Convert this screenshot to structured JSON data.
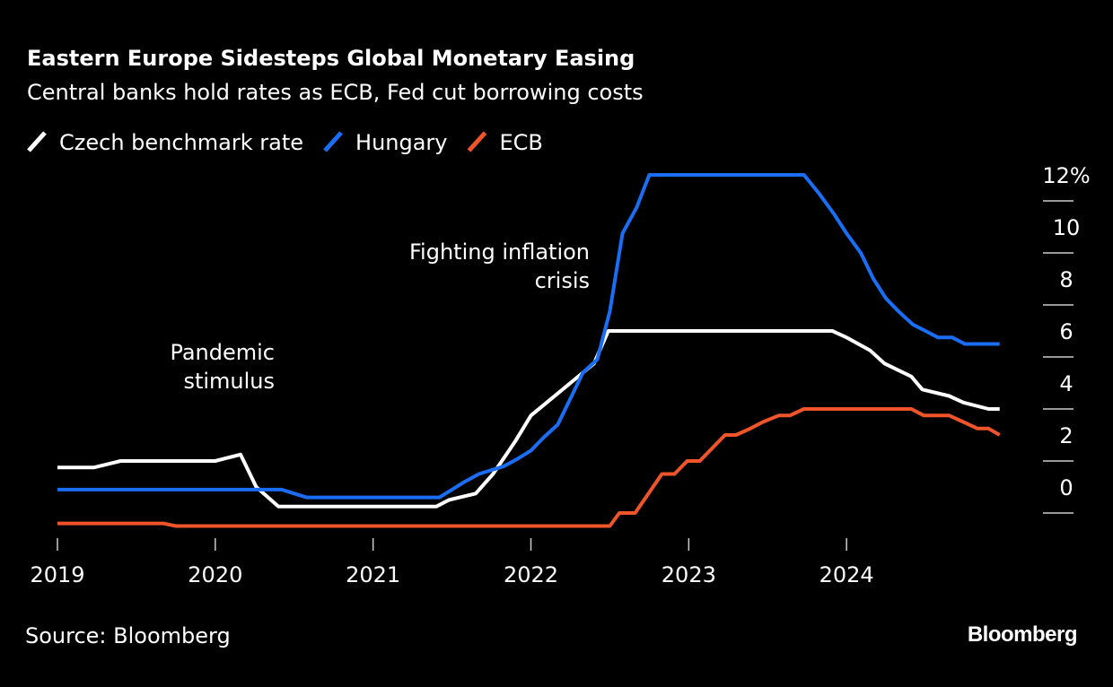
{
  "chart_data": {
    "type": "line",
    "title": "Eastern Europe Sidesteps Global Monetary Easing",
    "subtitle": "Central banks hold rates as ECB, Fed cut borrowing costs",
    "source": "Source: Bloomberg",
    "logo": "Bloomberg",
    "annotations": [
      {
        "lines": [
          "Pandemic",
          "stimulus"
        ]
      },
      {
        "lines": [
          "Fighting inflation",
          "crisis"
        ]
      }
    ],
    "xlim": [
      2019,
      2025
    ],
    "xticks": [
      2019,
      2020,
      2021,
      2022,
      2023,
      2024
    ],
    "ylim": [
      -1,
      13
    ],
    "yticks": [
      0,
      2,
      4,
      6,
      8,
      10,
      {
        "value": 12,
        "label": "12%"
      }
    ],
    "series": [
      {
        "name": "Czech benchmark rate",
        "color": "#ffffff",
        "x": [
          2019.0,
          2019.23,
          2019.4,
          2020.0,
          2020.16,
          2020.26,
          2020.4,
          2021.4,
          2021.48,
          2021.65,
          2021.76,
          2021.9,
          2022.0,
          2022.1,
          2022.2,
          2022.4,
          2022.49,
          2023.91,
          2024.0,
          2024.15,
          2024.24,
          2024.41,
          2024.48,
          2024.65,
          2024.74,
          2024.9,
          2024.97
        ],
        "values": [
          1.75,
          1.75,
          2.0,
          2.0,
          2.25,
          1.0,
          0.25,
          0.25,
          0.5,
          0.75,
          1.5,
          2.75,
          3.75,
          4.25,
          4.75,
          5.75,
          7.0,
          7.0,
          6.75,
          6.25,
          5.75,
          5.25,
          4.75,
          4.5,
          4.25,
          4.0,
          4.0
        ]
      },
      {
        "name": "Hungary",
        "color": "#1a6ef5",
        "x": [
          2019.0,
          2020.42,
          2020.5,
          2020.58,
          2021.42,
          2021.5,
          2021.58,
          2021.67,
          2021.75,
          2021.83,
          2021.92,
          2022.0,
          2022.08,
          2022.17,
          2022.25,
          2022.33,
          2022.42,
          2022.5,
          2022.58,
          2022.67,
          2022.75,
          2023.73,
          2023.83,
          2023.92,
          2024.0,
          2024.09,
          2024.17,
          2024.25,
          2024.33,
          2024.42,
          2024.5,
          2024.58,
          2024.67,
          2024.75,
          2024.97
        ],
        "values": [
          0.9,
          0.9,
          0.75,
          0.6,
          0.6,
          0.9,
          1.2,
          1.5,
          1.65,
          1.8,
          2.1,
          2.4,
          2.9,
          3.4,
          4.4,
          5.4,
          5.9,
          7.75,
          10.75,
          11.75,
          13.0,
          13.0,
          12.25,
          11.5,
          10.75,
          10.0,
          9.0,
          8.25,
          7.75,
          7.25,
          7.0,
          6.75,
          6.75,
          6.5,
          6.5
        ]
      },
      {
        "name": "ECB",
        "color": "#f0542a",
        "x": [
          2019.0,
          2019.67,
          2019.75,
          2022.5,
          2022.56,
          2022.66,
          2022.83,
          2022.91,
          2022.99,
          2023.07,
          2023.23,
          2023.3,
          2023.39,
          2023.47,
          2023.57,
          2023.64,
          2023.73,
          2024.41,
          2024.49,
          2024.65,
          2024.74,
          2024.83,
          2024.9,
          2024.97
        ],
        "values": [
          -0.4,
          -0.4,
          -0.5,
          -0.5,
          0.0,
          0.0,
          1.5,
          1.5,
          2.0,
          2.0,
          3.0,
          3.0,
          3.25,
          3.5,
          3.75,
          3.75,
          4.0,
          4.0,
          3.75,
          3.75,
          3.5,
          3.25,
          3.25,
          3.0
        ]
      }
    ]
  }
}
